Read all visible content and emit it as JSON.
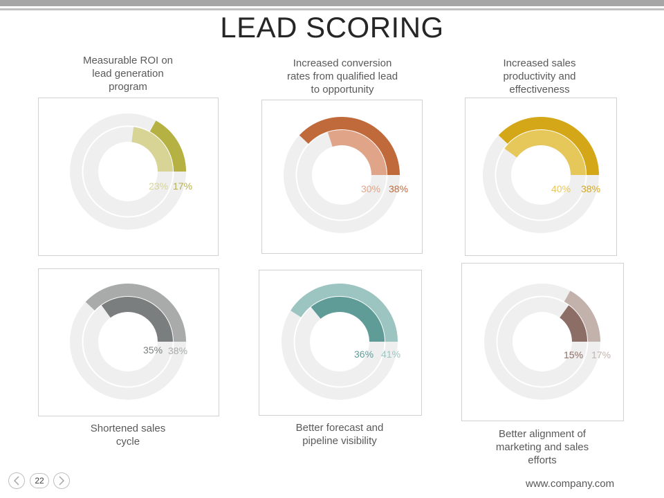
{
  "title": "LEAD SCORING",
  "footer": {
    "url": "www.company.com",
    "page_number": "22"
  },
  "chart_data": [
    {
      "type": "pie",
      "name": "Measurable ROI on lead generation program",
      "caption": [
        "Measurable ROI on",
        "lead generation",
        "program"
      ],
      "outer": {
        "value": 17,
        "label": "17%",
        "color": "#b5b143"
      },
      "inner": {
        "value": 23,
        "label": "23%",
        "color": "#d7d496"
      }
    },
    {
      "type": "pie",
      "name": "Increased conversion rates from qualified lead to opportunity",
      "caption": [
        "Increased conversion",
        "rates from qualified lead",
        "to opportunity"
      ],
      "outer": {
        "value": 38,
        "label": "38%",
        "color": "#c0693b"
      },
      "inner": {
        "value": 30,
        "label": "30%",
        "color": "#e0a488"
      }
    },
    {
      "type": "pie",
      "name": "Increased sales productivity and effectiveness",
      "caption": [
        "Increased sales",
        "productivity and",
        "effectiveness"
      ],
      "outer": {
        "value": 38,
        "label": "38%",
        "color": "#d4a719"
      },
      "inner": {
        "value": 40,
        "label": "40%",
        "color": "#e6c75a"
      }
    },
    {
      "type": "pie",
      "name": "Shortened sales cycle",
      "caption": [
        "Shortened sales",
        "cycle"
      ],
      "outer": {
        "value": 38,
        "label": "38%",
        "color": "#a9abab"
      },
      "inner": {
        "value": 35,
        "label": "35%",
        "color": "#7b7e7e"
      }
    },
    {
      "type": "pie",
      "name": "Better forecast and pipeline visibility",
      "caption": [
        "Better forecast and",
        "pipeline visibility"
      ],
      "outer": {
        "value": 41,
        "label": "41%",
        "color": "#9cc4c1"
      },
      "inner": {
        "value": 36,
        "label": "36%",
        "color": "#5f9c98"
      }
    },
    {
      "type": "pie",
      "name": "Better alignment of marketing and sales efforts",
      "caption": [
        "Better alignment of",
        "marketing and sales",
        "efforts"
      ],
      "outer": {
        "value": 17,
        "label": "17%",
        "color": "#c3b2ac"
      },
      "inner": {
        "value": 15,
        "label": "15%",
        "color": "#8d6e66"
      }
    }
  ]
}
